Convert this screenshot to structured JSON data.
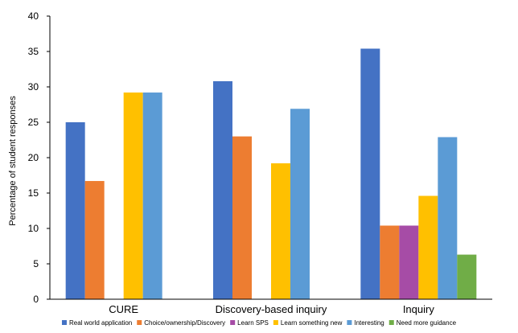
{
  "chart_data": {
    "type": "bar",
    "title": "",
    "xlabel": "",
    "ylabel": "Percentage of student responses",
    "ylim": [
      0,
      40
    ],
    "yticks": [
      0,
      5,
      10,
      15,
      20,
      25,
      30,
      35,
      40
    ],
    "grid": false,
    "legend_position": "bottom",
    "categories": [
      "CURE",
      "Discovery-based inquiry",
      "Inquiry"
    ],
    "series": [
      {
        "name": "Real world application",
        "color": "#4472C4",
        "values": [
          25.0,
          30.8,
          35.4
        ]
      },
      {
        "name": "Choice/ownership/Discovery",
        "color": "#ED7D31",
        "values": [
          16.7,
          23.0,
          10.4
        ]
      },
      {
        "name": "Learn SPS",
        "color": "#A64CA6",
        "values": [
          0,
          0,
          10.4
        ]
      },
      {
        "name": "Learn something new",
        "color": "#FFC000",
        "values": [
          29.2,
          19.2,
          14.6
        ]
      },
      {
        "name": "Interesting",
        "color": "#5B9BD5",
        "values": [
          29.2,
          26.9,
          22.9
        ]
      },
      {
        "name": "Need more guidance",
        "color": "#70AD47",
        "values": [
          0,
          0,
          6.3
        ]
      }
    ]
  }
}
